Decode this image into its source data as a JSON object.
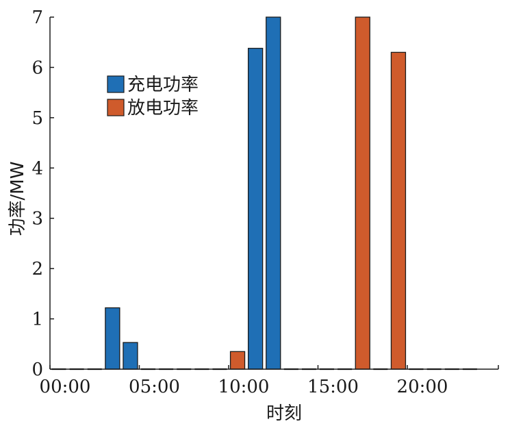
{
  "chart_data": {
    "type": "bar",
    "xlabel": "时刻",
    "ylabel": "功率/MW",
    "ylim": [
      0,
      7
    ],
    "yticks": [
      "0",
      "1",
      "2",
      "3",
      "4",
      "5",
      "6",
      "7"
    ],
    "xticks": [
      {
        "label": "00:00",
        "hour": 0
      },
      {
        "label": "05:00",
        "hour": 5
      },
      {
        "label": "10:00",
        "hour": 10
      },
      {
        "label": "15:00",
        "hour": 15
      },
      {
        "label": "20:00",
        "hour": 20
      }
    ],
    "hours": [
      1,
      2,
      3,
      4,
      5,
      6,
      7,
      8,
      9,
      10,
      11,
      12,
      13,
      14,
      15,
      16,
      17,
      18,
      19,
      20,
      21,
      22,
      23,
      24
    ],
    "legend_position": "upper-left",
    "series": [
      {
        "name": "充电功率",
        "color": "#1f6fb5",
        "values": [
          0,
          0,
          0,
          1.22,
          0.53,
          0,
          0,
          0,
          0,
          0,
          0,
          6.38,
          7.0,
          0,
          0,
          0,
          0,
          0,
          0,
          0,
          0,
          0,
          0,
          0
        ]
      },
      {
        "name": "放电功率",
        "color": "#cf5b2c",
        "values": [
          0,
          0,
          0,
          0,
          0,
          0,
          0,
          0,
          0,
          0,
          0.35,
          0,
          0,
          0,
          0,
          0,
          0,
          7.0,
          0,
          6.3,
          0,
          0,
          0,
          0
        ]
      }
    ]
  }
}
